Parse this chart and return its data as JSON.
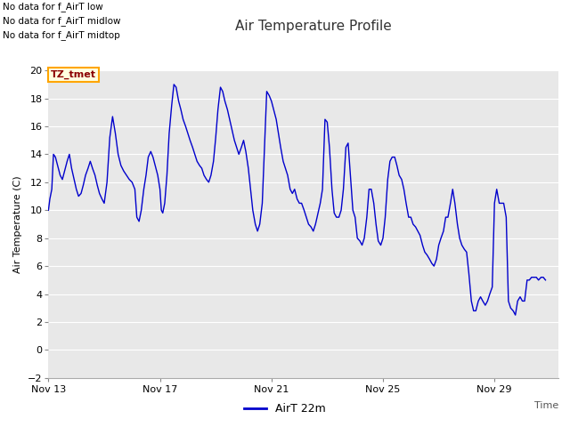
{
  "title": "Air Temperature Profile",
  "xlabel": "Time",
  "ylabel": "Air Temperature (C)",
  "legend_label": "AirT 22m",
  "no_data_texts": [
    "No data for f_AirT low",
    "No data for f_AirT midlow",
    "No data for f_AirT midtop"
  ],
  "tz_label": "TZ_tmet",
  "ylim": [
    -2,
    20
  ],
  "yticks": [
    -2,
    0,
    2,
    4,
    6,
    8,
    10,
    12,
    14,
    16,
    18,
    20
  ],
  "line_color": "#0000CC",
  "fig_bg_color": "#ffffff",
  "plot_bg_color": "#E8E8E8",
  "grid_color": "#ffffff",
  "xtick_days": [
    13,
    17,
    21,
    25,
    29
  ],
  "xlim": [
    13,
    31.3
  ],
  "time_data": [
    13.0,
    13.05,
    13.12,
    13.18,
    13.25,
    13.33,
    13.42,
    13.5,
    13.58,
    13.67,
    13.75,
    13.83,
    13.92,
    14.0,
    14.08,
    14.17,
    14.25,
    14.33,
    14.42,
    14.5,
    14.58,
    14.67,
    14.75,
    14.83,
    14.92,
    15.0,
    15.1,
    15.2,
    15.3,
    15.4,
    15.5,
    15.6,
    15.7,
    15.8,
    15.9,
    16.0,
    16.1,
    16.17,
    16.25,
    16.33,
    16.42,
    16.5,
    16.58,
    16.67,
    16.75,
    16.83,
    16.92,
    17.0,
    17.05,
    17.1,
    17.17,
    17.25,
    17.33,
    17.42,
    17.5,
    17.58,
    17.67,
    17.75,
    17.83,
    17.92,
    18.0,
    18.08,
    18.17,
    18.25,
    18.33,
    18.42,
    18.5,
    18.58,
    18.67,
    18.75,
    18.83,
    18.92,
    19.0,
    19.08,
    19.17,
    19.25,
    19.33,
    19.42,
    19.5,
    19.58,
    19.67,
    19.75,
    19.83,
    19.92,
    20.0,
    20.08,
    20.17,
    20.25,
    20.33,
    20.42,
    20.5,
    20.58,
    20.67,
    20.75,
    20.83,
    20.92,
    21.0,
    21.08,
    21.17,
    21.25,
    21.33,
    21.42,
    21.5,
    21.58,
    21.67,
    21.75,
    21.83,
    21.92,
    22.0,
    22.08,
    22.17,
    22.25,
    22.33,
    22.42,
    22.5,
    22.58,
    22.67,
    22.75,
    22.83,
    22.92,
    23.0,
    23.08,
    23.17,
    23.25,
    23.33,
    23.42,
    23.5,
    23.58,
    23.67,
    23.75,
    23.83,
    23.92,
    24.0,
    24.08,
    24.17,
    24.25,
    24.33,
    24.42,
    24.5,
    24.58,
    24.67,
    24.75,
    24.83,
    24.92,
    25.0,
    25.08,
    25.17,
    25.25,
    25.33,
    25.42,
    25.5,
    25.58,
    25.67,
    25.75,
    25.83,
    25.92,
    26.0,
    26.08,
    26.17,
    26.25,
    26.33,
    26.42,
    26.5,
    26.58,
    26.67,
    26.75,
    26.83,
    26.92,
    27.0,
    27.08,
    27.17,
    27.25,
    27.33,
    27.42,
    27.5,
    27.58,
    27.67,
    27.75,
    27.83,
    27.92,
    28.0,
    28.08,
    28.17,
    28.25,
    28.33,
    28.42,
    28.5,
    28.58,
    28.67,
    28.75,
    28.83,
    28.92,
    29.0,
    29.08,
    29.17,
    29.25,
    29.33,
    29.42,
    29.5,
    29.58,
    29.67,
    29.75,
    29.83,
    29.92,
    30.0,
    30.08,
    30.17,
    30.25,
    30.33,
    30.42,
    30.5,
    30.58,
    30.67,
    30.75,
    30.83
  ],
  "temp_data": [
    10.0,
    10.8,
    11.5,
    14.0,
    13.8,
    13.2,
    12.5,
    12.2,
    12.8,
    13.5,
    14.0,
    13.0,
    12.2,
    11.5,
    11.0,
    11.2,
    11.8,
    12.5,
    13.0,
    13.5,
    13.0,
    12.5,
    11.8,
    11.2,
    10.8,
    10.5,
    12.0,
    15.2,
    16.7,
    15.5,
    14.0,
    13.2,
    12.8,
    12.5,
    12.2,
    12.0,
    11.5,
    9.5,
    9.2,
    10.0,
    11.5,
    12.5,
    13.8,
    14.2,
    13.8,
    13.2,
    12.5,
    11.5,
    10.0,
    9.8,
    10.5,
    12.5,
    15.5,
    17.5,
    19.0,
    18.8,
    17.8,
    17.2,
    16.5,
    16.0,
    15.5,
    15.0,
    14.5,
    14.0,
    13.5,
    13.2,
    13.0,
    12.5,
    12.2,
    12.0,
    12.5,
    13.5,
    15.2,
    17.2,
    18.8,
    18.5,
    17.8,
    17.2,
    16.5,
    15.8,
    15.0,
    14.5,
    14.0,
    14.5,
    15.0,
    14.2,
    13.0,
    11.5,
    10.0,
    9.0,
    8.5,
    9.0,
    10.5,
    14.5,
    18.5,
    18.2,
    17.8,
    17.2,
    16.5,
    15.5,
    14.5,
    13.5,
    13.0,
    12.5,
    11.5,
    11.2,
    11.5,
    10.8,
    10.5,
    10.5,
    10.0,
    9.5,
    9.0,
    8.8,
    8.5,
    9.0,
    9.8,
    10.5,
    11.5,
    16.5,
    16.3,
    14.5,
    11.5,
    9.8,
    9.5,
    9.5,
    10.0,
    11.5,
    14.5,
    14.8,
    12.5,
    10.0,
    9.5,
    8.0,
    7.8,
    7.5,
    8.0,
    9.5,
    11.5,
    11.5,
    10.5,
    9.0,
    7.8,
    7.5,
    8.0,
    9.5,
    12.2,
    13.5,
    13.8,
    13.8,
    13.2,
    12.5,
    12.2,
    11.5,
    10.5,
    9.5,
    9.5,
    9.0,
    8.8,
    8.5,
    8.2,
    7.5,
    7.0,
    6.8,
    6.5,
    6.2,
    6.0,
    6.5,
    7.5,
    8.0,
    8.5,
    9.5,
    9.5,
    10.5,
    11.5,
    10.5,
    9.0,
    8.0,
    7.5,
    7.2,
    7.0,
    5.5,
    3.5,
    2.8,
    2.8,
    3.5,
    3.8,
    3.5,
    3.2,
    3.5,
    4.0,
    4.5,
    10.5,
    11.5,
    10.5,
    10.5,
    10.5,
    9.5,
    3.5,
    3.0,
    2.8,
    2.5,
    3.5,
    3.8,
    3.5,
    3.5,
    5.0,
    5.0,
    5.2,
    5.2,
    5.2,
    5.0,
    5.2,
    5.2,
    5.0
  ]
}
